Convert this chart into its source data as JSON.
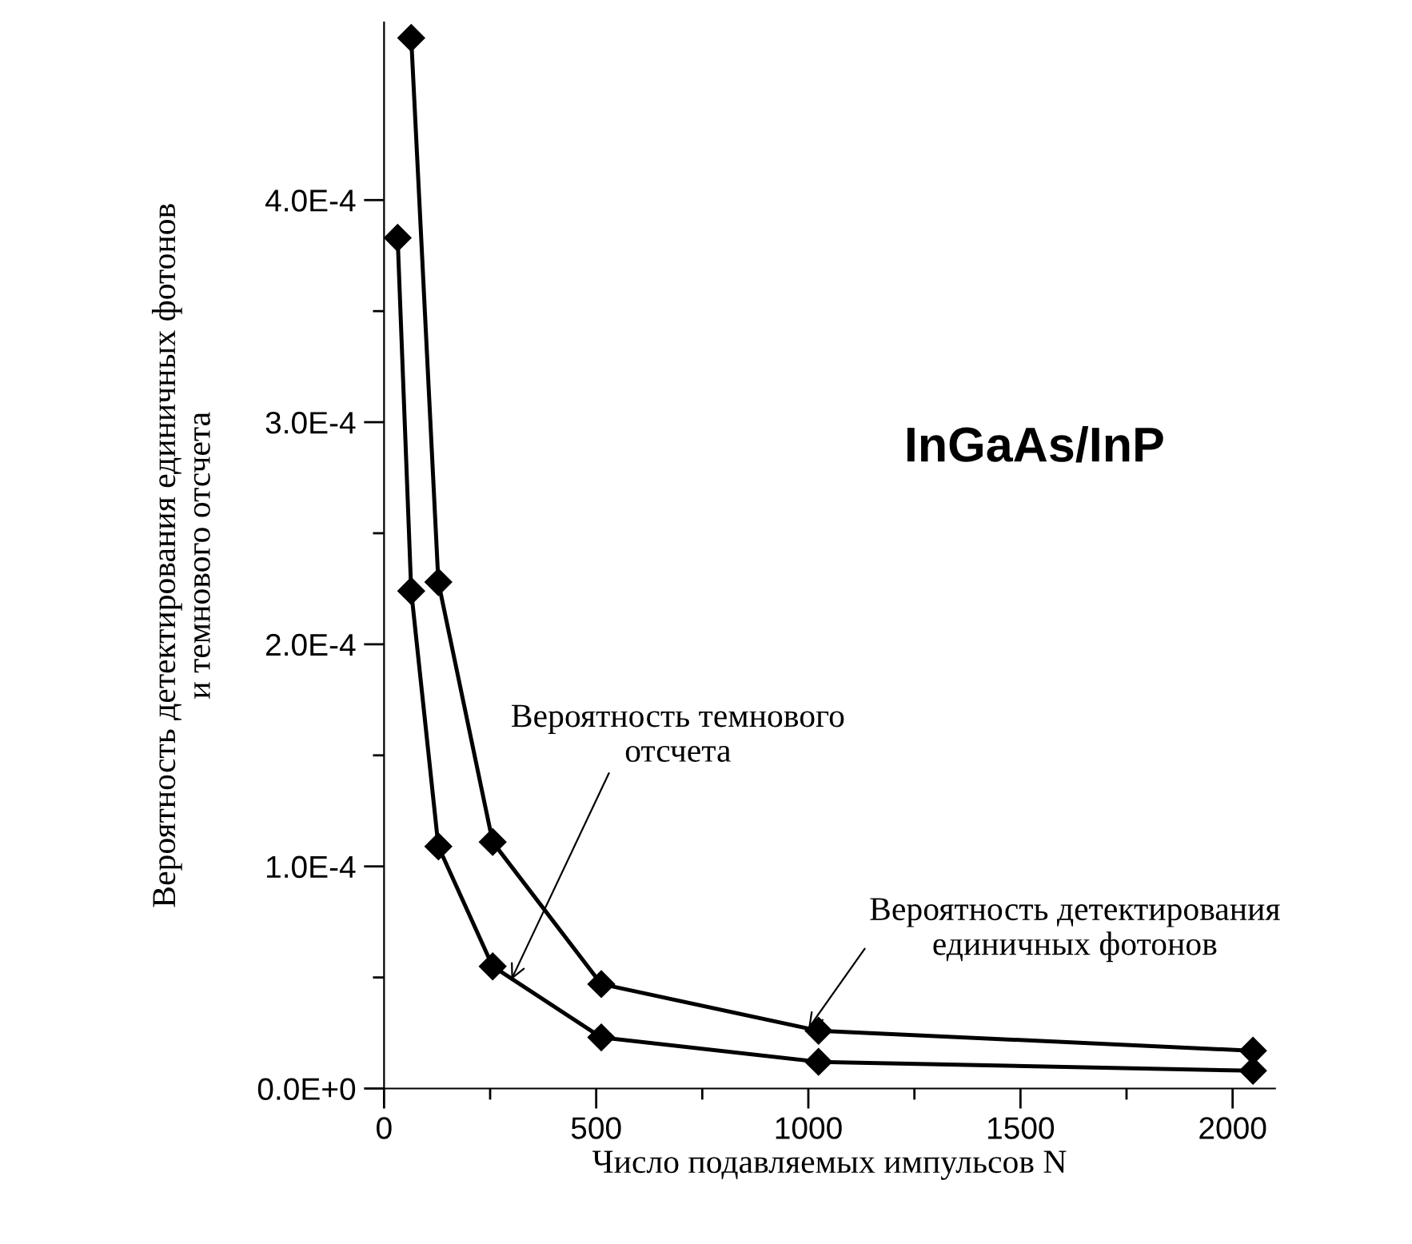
{
  "chart_data": {
    "type": "line",
    "xlabel": "Число подавляемых импульсов N",
    "ylabel": "Вероятность детектирования единичных фотонов\nи темнового отсчета",
    "series": [
      {
        "color": "#000000",
        "x": [
          64,
          128,
          256,
          512,
          1024,
          2048
        ],
        "values": [
          0.000473,
          0.000228,
          0.000111,
          4.7e-05,
          2.6e-05,
          1.7e-05
        ]
      },
      {
        "color": "#000000",
        "x": [
          32,
          64,
          128,
          256,
          512,
          1024,
          2048
        ],
        "values": [
          0.000383,
          0.000224,
          0.000109,
          5.5e-05,
          2.3e-05,
          1.2e-05,
          8e-06
        ]
      }
    ],
    "xlim": [
      0,
      2100
    ],
    "xticks": [
      0,
      {
        "value": 250,
        "label": null
      },
      500,
      {
        "value": 750,
        "label": null
      },
      1000,
      {
        "value": 1250,
        "label": null
      },
      1500,
      {
        "value": 1750,
        "label": null
      },
      2000
    ],
    "ylim": [
      0,
      0.00048
    ],
    "yticks": [
      {
        "value": 0,
        "label": "0.0E+0"
      },
      {
        "value": 5e-05,
        "label": null
      },
      {
        "value": 0.0001,
        "label": "1.0E-4"
      },
      {
        "value": 0.00015,
        "label": null
      },
      {
        "value": 0.0002,
        "label": "2.0E-4"
      },
      {
        "value": 0.00025,
        "label": null
      },
      {
        "value": 0.0003,
        "label": "3.0E-4"
      },
      {
        "value": 0.00035,
        "label": null
      },
      {
        "value": 0.0004,
        "label": "4.0E-4"
      }
    ],
    "annotations": [
      {
        "text": "Вероятность темнового\nотсчета",
        "x": 300,
        "y": 4.9e-05
      },
      {
        "text": "Вероятность детектирования\nединичных фотонов",
        "x": 1000,
        "y": 2.7e-05
      },
      "InGaAs/InP"
    ],
    "grid": false,
    "legend": false,
    "marker": "diamond",
    "line_style": "solid"
  }
}
